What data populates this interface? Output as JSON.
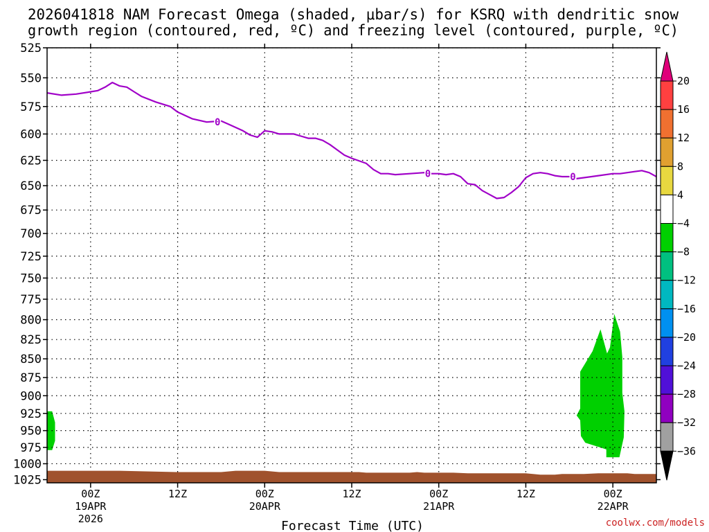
{
  "chart_data": {
    "type": "area",
    "title_lines": [
      "2026041818 NAM Forecast Omega (shaded, μbar/s) for KSRQ with dendritic snow",
      "growth region (contoured, red, ºC) and freezing level (contoured, purple, ºC)"
    ],
    "xlabel": "Forecast Time (UTC)",
    "credit": "coolwx.com/models",
    "x_ticks": [
      {
        "h": 6,
        "lines": [
          "00Z",
          "19APR",
          "2026"
        ]
      },
      {
        "h": 18,
        "lines": [
          "12Z"
        ]
      },
      {
        "h": 30,
        "lines": [
          "00Z",
          "20APR"
        ]
      },
      {
        "h": 42,
        "lines": [
          "12Z"
        ]
      },
      {
        "h": 54,
        "lines": [
          "00Z",
          "21APR"
        ]
      },
      {
        "h": 66,
        "lines": [
          "12Z"
        ]
      },
      {
        "h": 78,
        "lines": [
          "00Z",
          "22APR"
        ]
      }
    ],
    "xlim": [
      0,
      84
    ],
    "y_ticks": [
      525,
      550,
      575,
      600,
      625,
      650,
      675,
      700,
      725,
      750,
      775,
      800,
      825,
      850,
      875,
      900,
      925,
      950,
      975,
      1000,
      1025
    ],
    "ylim": [
      525,
      1030
    ],
    "y_scale": "log-pressure",
    "grid": true,
    "freezing_level": {
      "label": "0",
      "color": "#a000c8",
      "points": [
        [
          0,
          563
        ],
        [
          2,
          565
        ],
        [
          4,
          564
        ],
        [
          6,
          562
        ],
        [
          7,
          561
        ],
        [
          8,
          558
        ],
        [
          9,
          554
        ],
        [
          10,
          557
        ],
        [
          11,
          558
        ],
        [
          12,
          562
        ],
        [
          13,
          566
        ],
        [
          15,
          571
        ],
        [
          17,
          575
        ],
        [
          18,
          580
        ],
        [
          20,
          586
        ],
        [
          22,
          589
        ],
        [
          24,
          588
        ],
        [
          25,
          591
        ],
        [
          27,
          597
        ],
        [
          28,
          601
        ],
        [
          29,
          603
        ],
        [
          30,
          597
        ],
        [
          31,
          598
        ],
        [
          32,
          600
        ],
        [
          34,
          600
        ],
        [
          35,
          602
        ],
        [
          36,
          604
        ],
        [
          37,
          604
        ],
        [
          38,
          606
        ],
        [
          39,
          610
        ],
        [
          40,
          615
        ],
        [
          41,
          620
        ],
        [
          42,
          623
        ],
        [
          44,
          628
        ],
        [
          45,
          634
        ],
        [
          46,
          638
        ],
        [
          47,
          638
        ],
        [
          48,
          639
        ],
        [
          50,
          638
        ],
        [
          52,
          637
        ],
        [
          53,
          638
        ],
        [
          54,
          638
        ],
        [
          55,
          639
        ],
        [
          56,
          638
        ],
        [
          57,
          641
        ],
        [
          58,
          648
        ],
        [
          59,
          649
        ],
        [
          60,
          655
        ],
        [
          61,
          659
        ],
        [
          62,
          663
        ],
        [
          63,
          662
        ],
        [
          64,
          657
        ],
        [
          65,
          651
        ],
        [
          66,
          642
        ],
        [
          67,
          638
        ],
        [
          68,
          637
        ],
        [
          69,
          638
        ],
        [
          70,
          640
        ],
        [
          71,
          641
        ],
        [
          72,
          641
        ],
        [
          73,
          643
        ],
        [
          74,
          642
        ],
        [
          76,
          640
        ],
        [
          78,
          638
        ],
        [
          79,
          638
        ],
        [
          80,
          637
        ],
        [
          81,
          636
        ],
        [
          82,
          635
        ],
        [
          83,
          637
        ],
        [
          84,
          641
        ]
      ]
    },
    "terrain": {
      "color": "#a0522d",
      "top_mb": [
        [
          0,
          1011
        ],
        [
          10,
          1011
        ],
        [
          18,
          1013
        ],
        [
          24,
          1013
        ],
        [
          26,
          1011
        ],
        [
          30,
          1011
        ],
        [
          32,
          1013
        ],
        [
          43,
          1013
        ],
        [
          44,
          1014
        ],
        [
          50,
          1014
        ],
        [
          51,
          1013
        ],
        [
          52,
          1014
        ],
        [
          56,
          1014
        ],
        [
          58,
          1015
        ],
        [
          66,
          1015
        ],
        [
          67,
          1016
        ],
        [
          68,
          1017
        ],
        [
          70,
          1017
        ],
        [
          71,
          1016
        ],
        [
          74,
          1016
        ],
        [
          76,
          1015
        ],
        [
          80,
          1015
        ],
        [
          81,
          1016
        ],
        [
          84,
          1016
        ]
      ]
    },
    "omega_regions": [
      {
        "range": "-8 to -4",
        "color": "#00d000",
        "polygon": [
          [
            0,
            922
          ],
          [
            0.7,
            922
          ],
          [
            1.1,
            938
          ],
          [
            1.1,
            965
          ],
          [
            0.7,
            979
          ],
          [
            0,
            979
          ]
        ]
      },
      {
        "range": "-8 to -4",
        "color": "#00d000",
        "polygon": [
          [
            73.5,
            918
          ],
          [
            73.5,
            867
          ],
          [
            75.2,
            840
          ],
          [
            76.3,
            812
          ],
          [
            77.2,
            843
          ],
          [
            77.6,
            835
          ],
          [
            78.2,
            793
          ],
          [
            79,
            815
          ],
          [
            79.3,
            848
          ],
          [
            79.3,
            896
          ],
          [
            79.6,
            922
          ],
          [
            79.5,
            960
          ],
          [
            78.9,
            990
          ],
          [
            77.1,
            990
          ],
          [
            77.1,
            978
          ],
          [
            74.2,
            968
          ],
          [
            73.6,
            958
          ],
          [
            73.5,
            935
          ],
          [
            73.0,
            928
          ]
        ]
      }
    ],
    "colorbar": {
      "colors_top_to_bottom": [
        "#ff4040",
        "#f07030",
        "#e0a030",
        "#e8d840",
        "#ffffff",
        "#00d000",
        "#00c080",
        "#00b8c0",
        "#0090f0",
        "#2040e0",
        "#5010d8",
        "#9000c0",
        "#a0a0a0"
      ],
      "labels": [
        "20",
        "16",
        "12",
        "8",
        "4",
        "−4",
        "−8",
        "−12",
        "−16",
        "−20",
        "−24",
        "−28",
        "−32",
        "−36"
      ],
      "top_arrow_color": "#e0007a",
      "bottom_arrow_color": "#000000"
    }
  }
}
